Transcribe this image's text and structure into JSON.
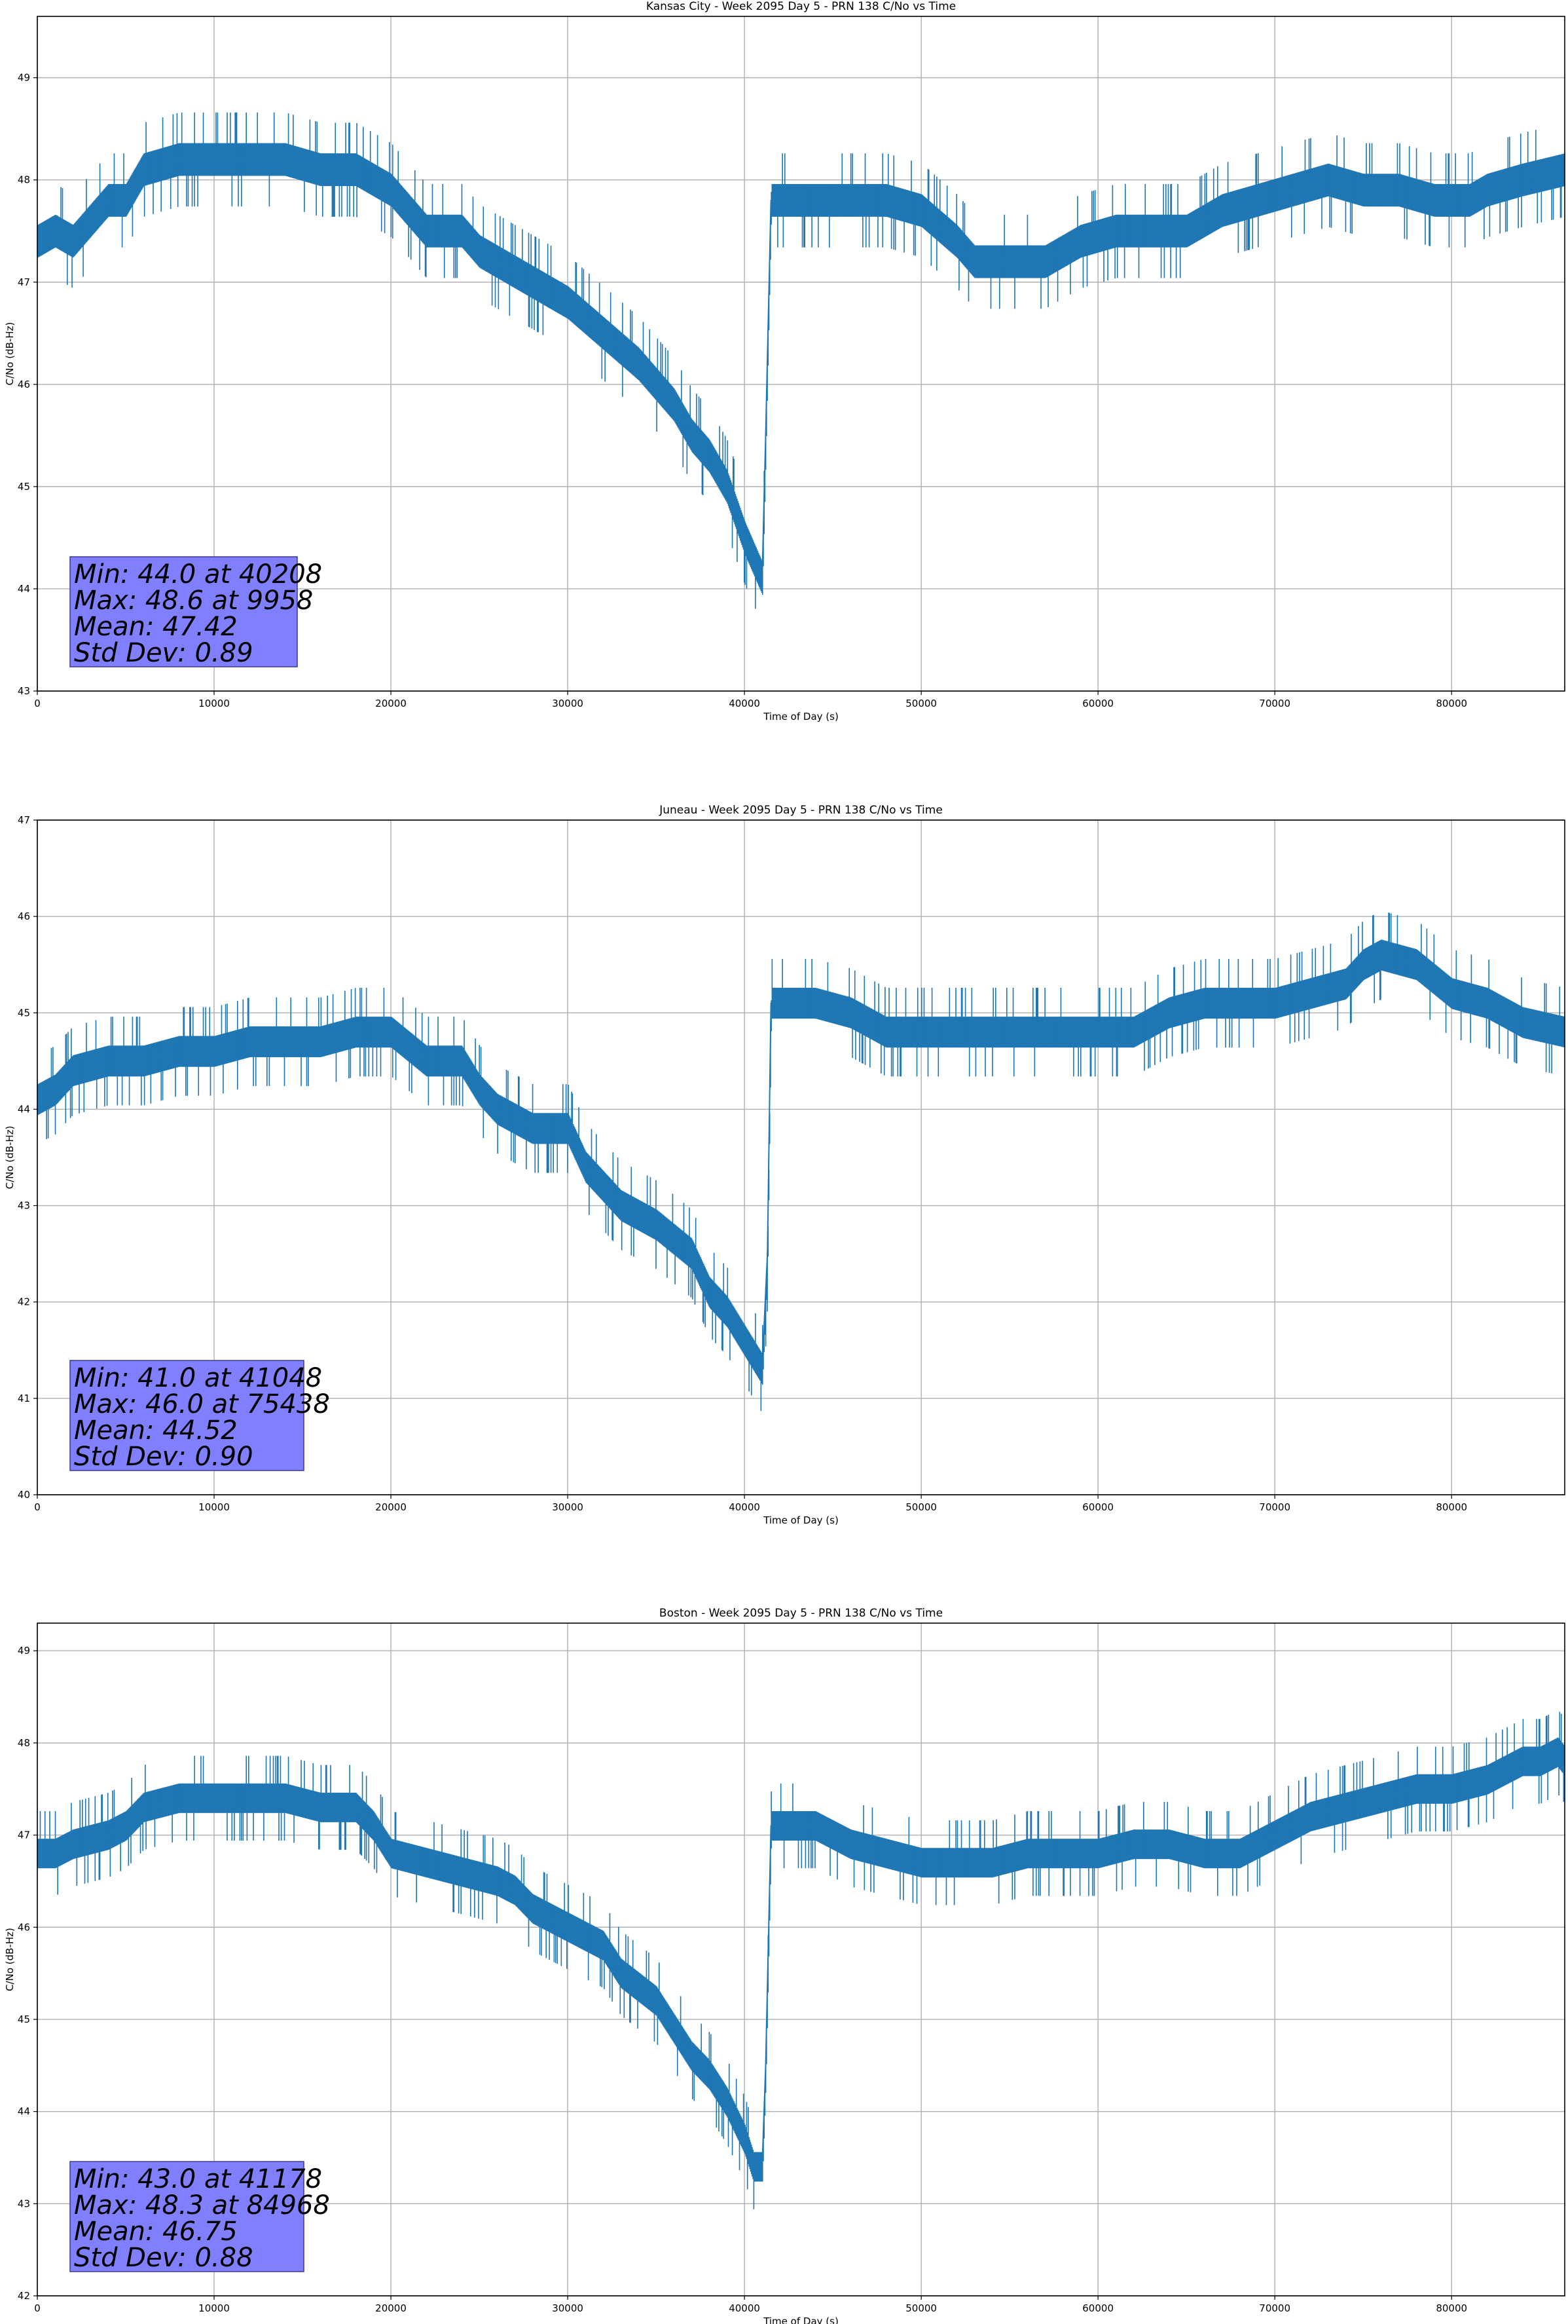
{
  "chart_data": [
    {
      "type": "line",
      "title": "Kansas City - Week 2095 Day 5 - PRN 138 C/No vs Time",
      "xlabel": "Time of Day (s)",
      "ylabel": "C/No (dB-Hz)",
      "xlim": [
        0,
        86400
      ],
      "ylim": [
        43,
        49.6
      ],
      "xticks": [
        0,
        10000,
        20000,
        30000,
        40000,
        50000,
        60000,
        70000,
        80000
      ],
      "yticks": [
        43,
        44,
        45,
        46,
        47,
        48,
        49
      ],
      "grid": true,
      "series": [
        {
          "color": "#1f77b4",
          "x": [
            0,
            1000,
            2000,
            3000,
            4000,
            5000,
            6000,
            8000,
            10000,
            12000,
            14000,
            16000,
            18000,
            19000,
            20000,
            21000,
            22000,
            24000,
            25000,
            26000,
            28000,
            30000,
            32000,
            34000,
            35000,
            36000,
            37000,
            38000,
            39000,
            40000,
            40500,
            41000,
            41200,
            41500,
            42000,
            44000,
            46000,
            48000,
            50000,
            52000,
            53000,
            55000,
            57000,
            59000,
            61000,
            63000,
            65000,
            67000,
            69000,
            71000,
            73000,
            75000,
            77000,
            79000,
            81000,
            82000,
            84000,
            86400
          ],
          "y": [
            47.4,
            47.5,
            47.4,
            47.6,
            47.8,
            47.8,
            48.1,
            48.2,
            48.2,
            48.2,
            48.2,
            48.1,
            48.1,
            48.0,
            47.9,
            47.7,
            47.5,
            47.5,
            47.3,
            47.2,
            47.0,
            46.8,
            46.5,
            46.2,
            46.0,
            45.8,
            45.5,
            45.3,
            45.0,
            44.5,
            44.3,
            44.1,
            45.5,
            47.8,
            47.8,
            47.8,
            47.8,
            47.8,
            47.7,
            47.4,
            47.2,
            47.2,
            47.2,
            47.4,
            47.5,
            47.5,
            47.5,
            47.7,
            47.8,
            47.9,
            48.0,
            47.9,
            47.9,
            47.8,
            47.8,
            47.9,
            48.0,
            48.1
          ]
        }
      ],
      "annotation": {
        "lines": [
          "Min: 44.0 at 40208",
          "Max: 48.6 at 9958",
          "Mean: 47.42",
          "Std Dev: 0.89"
        ],
        "background": "#8080ff"
      }
    },
    {
      "type": "line",
      "title": "Juneau - Week 2095 Day 5 - PRN 138 C/No vs Time",
      "xlabel": "Time of Day (s)",
      "ylabel": "C/No (dB-Hz)",
      "xlim": [
        0,
        86400
      ],
      "ylim": [
        40,
        47
      ],
      "xticks": [
        0,
        10000,
        20000,
        30000,
        40000,
        50000,
        60000,
        70000,
        80000
      ],
      "yticks": [
        40,
        41,
        42,
        43,
        44,
        45,
        46,
        47
      ],
      "grid": true,
      "series": [
        {
          "color": "#1f77b4",
          "x": [
            0,
            1000,
            2000,
            4000,
            6000,
            8000,
            10000,
            12000,
            14000,
            16000,
            18000,
            20000,
            22000,
            24000,
            25000,
            26000,
            28000,
            30000,
            31000,
            32000,
            33000,
            35000,
            37000,
            38000,
            39000,
            40000,
            41000,
            41300,
            41500,
            42000,
            44000,
            46000,
            48000,
            50000,
            52000,
            54000,
            56000,
            58000,
            60000,
            62000,
            64000,
            66000,
            68000,
            70000,
            72000,
            74000,
            75000,
            76000,
            78000,
            80000,
            82000,
            84000,
            86400
          ],
          "y": [
            44.1,
            44.2,
            44.4,
            44.5,
            44.5,
            44.6,
            44.6,
            44.7,
            44.7,
            44.7,
            44.8,
            44.8,
            44.5,
            44.5,
            44.2,
            44.0,
            43.8,
            43.8,
            43.4,
            43.2,
            43.0,
            42.8,
            42.5,
            42.1,
            41.9,
            41.6,
            41.3,
            42.5,
            45.1,
            45.1,
            45.1,
            45.0,
            44.8,
            44.8,
            44.8,
            44.8,
            44.8,
            44.8,
            44.8,
            44.8,
            45.0,
            45.1,
            45.1,
            45.1,
            45.2,
            45.3,
            45.5,
            45.6,
            45.5,
            45.2,
            45.1,
            44.9,
            44.8
          ]
        }
      ],
      "annotation": {
        "lines": [
          "Min: 41.0 at 41048",
          "Max: 46.0 at 75438",
          "Mean: 44.52",
          "Std Dev: 0.90"
        ],
        "background": "#8080ff"
      }
    },
    {
      "type": "line",
      "title": "Boston - Week 2095 Day 5 - PRN 138 C/No vs Time",
      "xlabel": "Time of Day (s)",
      "ylabel": "C/No (dB-Hz)",
      "xlim": [
        0,
        86400
      ],
      "ylim": [
        42,
        49.3
      ],
      "xticks": [
        0,
        10000,
        20000,
        30000,
        40000,
        50000,
        60000,
        70000,
        80000
      ],
      "yticks": [
        42,
        43,
        44,
        45,
        46,
        47,
        48,
        49
      ],
      "grid": true,
      "series": [
        {
          "color": "#1f77b4",
          "x": [
            0,
            1000,
            2000,
            4000,
            5000,
            6000,
            8000,
            10000,
            12000,
            14000,
            16000,
            18000,
            19000,
            20000,
            22000,
            24000,
            26000,
            27000,
            28000,
            30000,
            32000,
            33000,
            35000,
            36000,
            37000,
            38000,
            39000,
            40000,
            40500,
            41000,
            41200,
            41500,
            42000,
            44000,
            46000,
            48000,
            50000,
            52000,
            54000,
            56000,
            58000,
            60000,
            62000,
            64000,
            66000,
            68000,
            70000,
            72000,
            74000,
            76000,
            78000,
            80000,
            82000,
            84000,
            85000,
            86000,
            86400
          ],
          "y": [
            46.8,
            46.8,
            46.9,
            47.0,
            47.1,
            47.3,
            47.4,
            47.4,
            47.4,
            47.4,
            47.3,
            47.3,
            47.1,
            46.8,
            46.7,
            46.6,
            46.5,
            46.4,
            46.2,
            46.0,
            45.8,
            45.5,
            45.2,
            44.9,
            44.6,
            44.4,
            44.1,
            43.7,
            43.4,
            43.4,
            44.5,
            47.1,
            47.1,
            47.1,
            46.9,
            46.8,
            46.7,
            46.7,
            46.7,
            46.8,
            46.8,
            46.8,
            46.9,
            46.9,
            46.8,
            46.8,
            47.0,
            47.2,
            47.3,
            47.4,
            47.5,
            47.5,
            47.6,
            47.8,
            47.8,
            47.9,
            47.8
          ]
        }
      ],
      "annotation": {
        "lines": [
          "Min: 43.0 at 41178",
          "Max: 48.3 at 84968",
          "Mean: 46.75",
          "Std Dev: 0.88"
        ],
        "background": "#8080ff"
      }
    }
  ]
}
